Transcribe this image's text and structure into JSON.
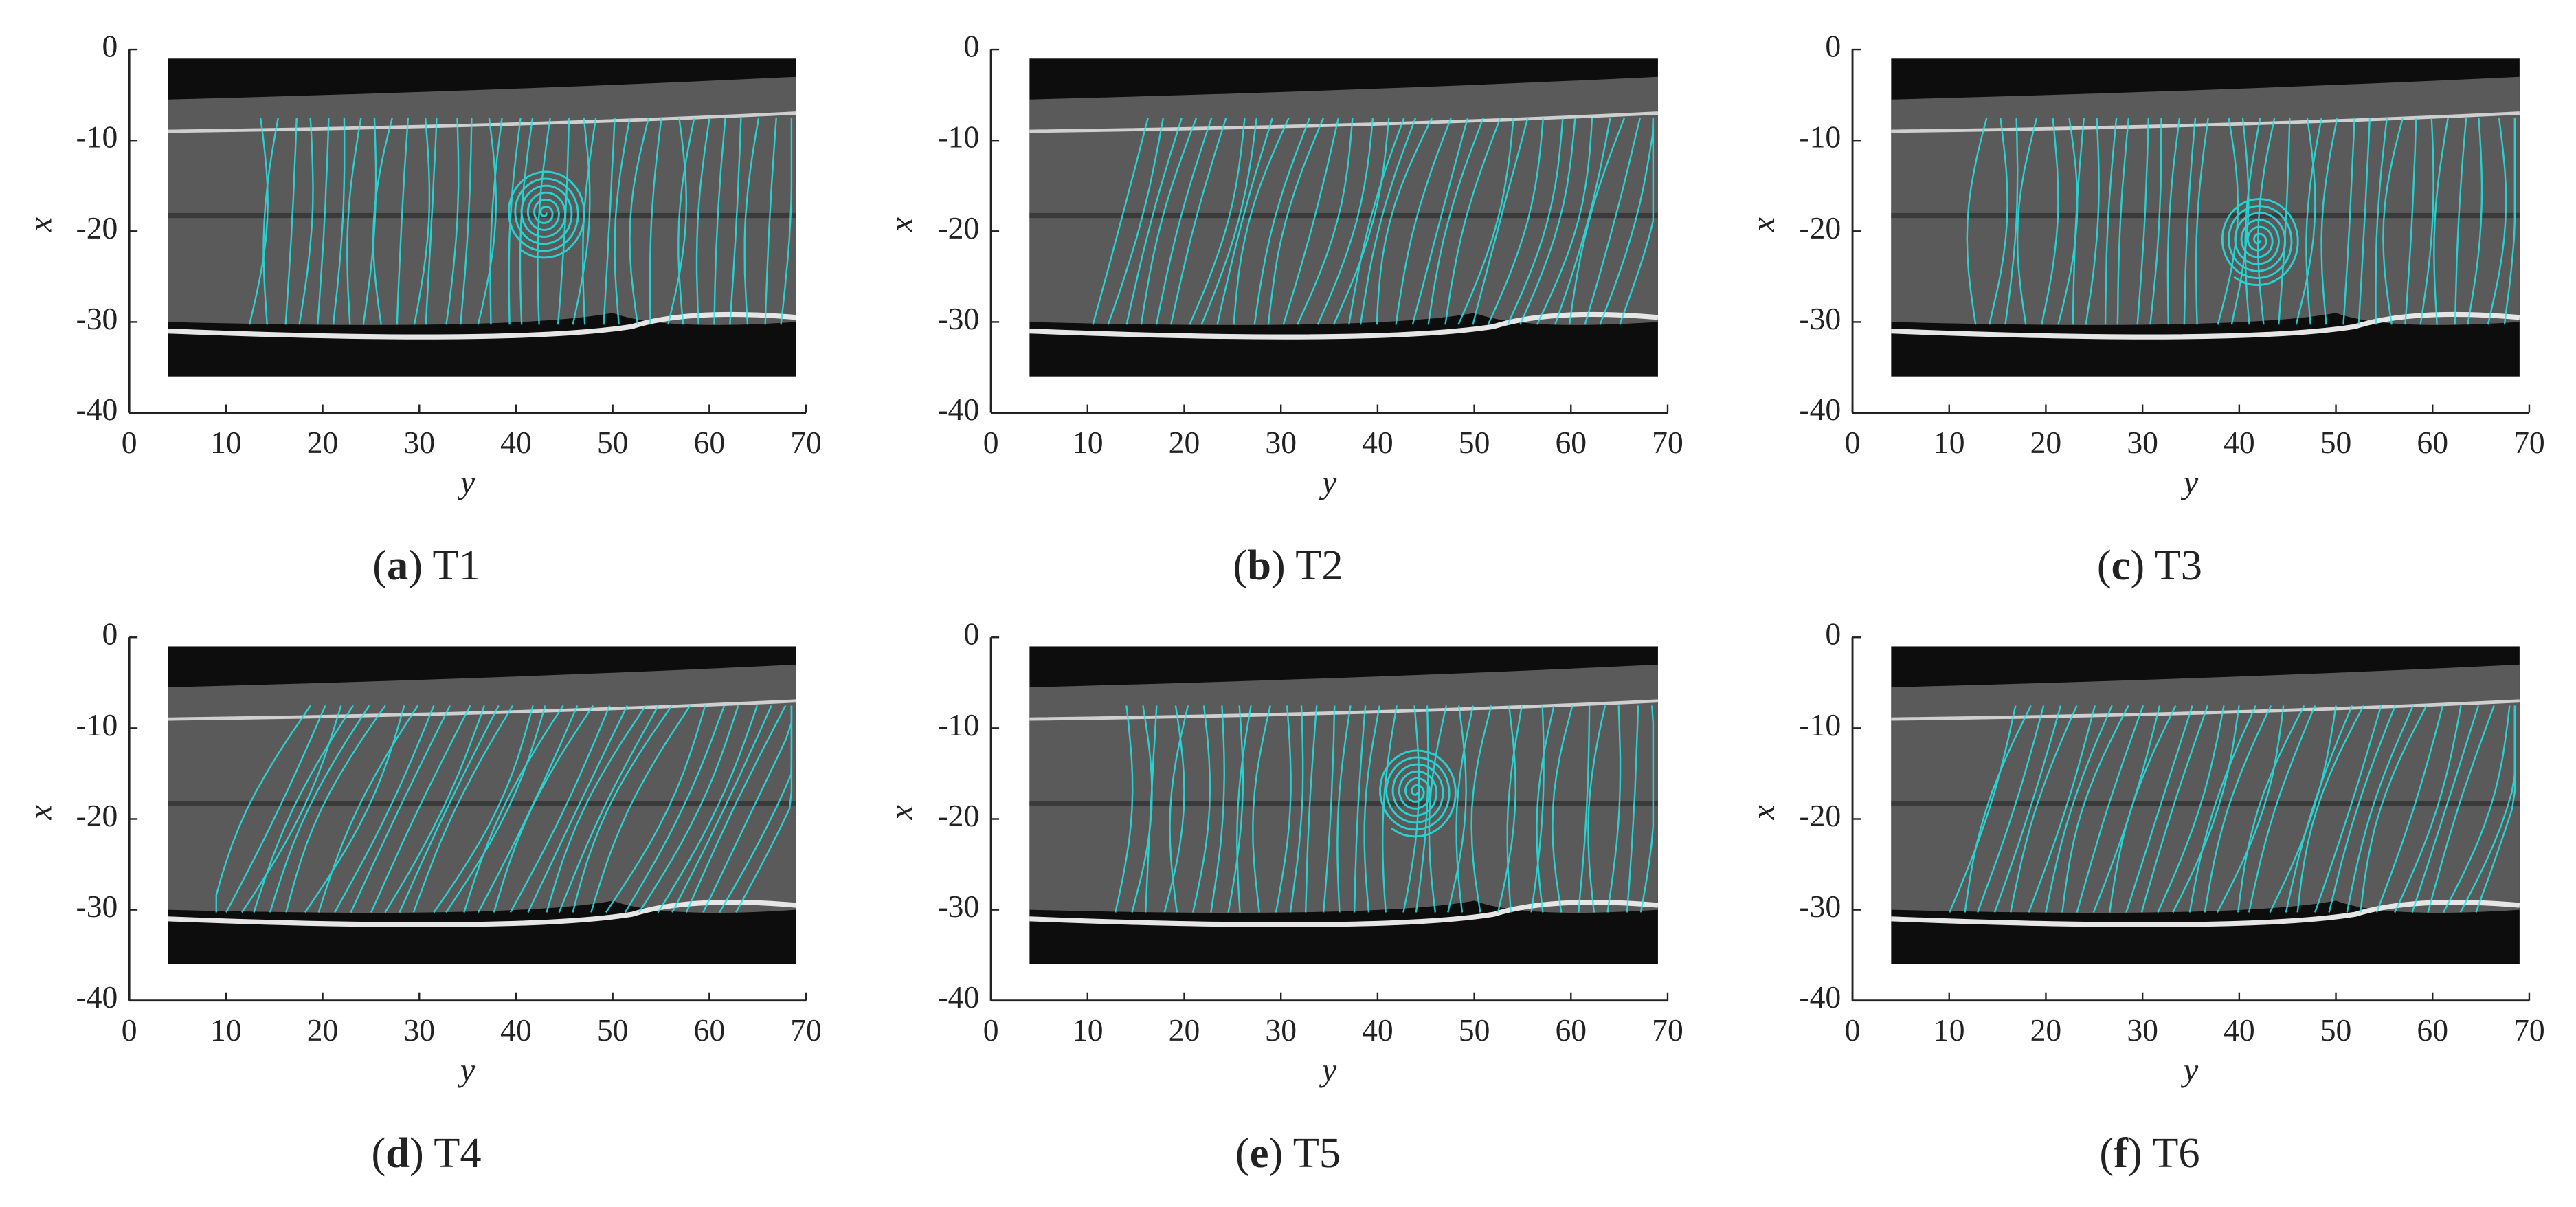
{
  "chart_data": [
    {
      "type": "image",
      "xlabel": "y",
      "ylabel": "x",
      "caption": "(a) T1",
      "xlim": [
        0,
        70
      ],
      "ylim": [
        -40,
        0
      ],
      "xticks": [
        0,
        10,
        20,
        30,
        40,
        50,
        60,
        70
      ],
      "yticks": [
        0,
        -10,
        -20,
        -30,
        -40
      ]
    },
    {
      "type": "image",
      "xlabel": "y",
      "ylabel": "x",
      "caption": "(b) T2",
      "xlim": [
        0,
        70
      ],
      "ylim": [
        -40,
        0
      ],
      "xticks": [
        0,
        10,
        20,
        30,
        40,
        50,
        60,
        70
      ],
      "yticks": [
        0,
        -10,
        -20,
        -30,
        -40
      ]
    },
    {
      "type": "image",
      "xlabel": "y",
      "ylabel": "x",
      "caption": "(c) T3",
      "xlim": [
        0,
        70
      ],
      "ylim": [
        -40,
        0
      ],
      "xticks": [
        0,
        10,
        20,
        30,
        40,
        50,
        60,
        70
      ],
      "yticks": [
        0,
        -10,
        -20,
        -30,
        -40
      ]
    },
    {
      "type": "image",
      "xlabel": "y",
      "ylabel": "x",
      "caption": "(d) T4",
      "xlim": [
        0,
        70
      ],
      "ylim": [
        -40,
        0
      ],
      "xticks": [
        0,
        10,
        20,
        30,
        40,
        50,
        60,
        70
      ],
      "yticks": [
        0,
        -10,
        -20,
        -30,
        -40
      ]
    },
    {
      "type": "image",
      "xlabel": "y",
      "ylabel": "x",
      "caption": "(e) T5",
      "xlim": [
        0,
        70
      ],
      "ylim": [
        -40,
        0
      ],
      "xticks": [
        0,
        10,
        20,
        30,
        40,
        50,
        60,
        70
      ],
      "yticks": [
        0,
        -10,
        -20,
        -30,
        -40
      ]
    },
    {
      "type": "image",
      "xlabel": "y",
      "ylabel": "x",
      "caption": "(f) T6",
      "xlim": [
        0,
        70
      ],
      "ylim": [
        -40,
        0
      ],
      "xticks": [
        0,
        10,
        20,
        30,
        40,
        50,
        60,
        70
      ],
      "yticks": [
        0,
        -10,
        -20,
        -30,
        -40
      ]
    }
  ]
}
